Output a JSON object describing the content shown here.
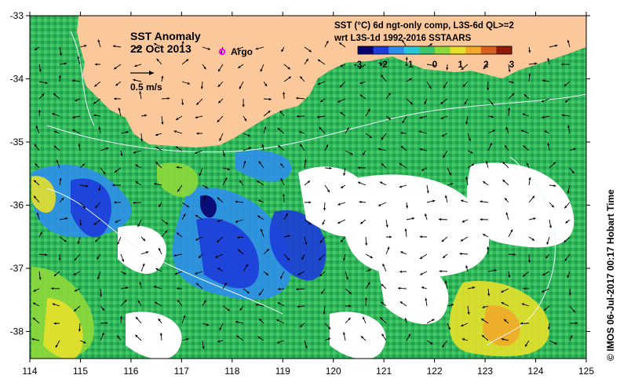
{
  "title": {
    "line1": "SST Anomaly",
    "line2": "22 Oct 2013"
  },
  "argo_label": "Argo",
  "vector_scale_label": "0.5 m/s",
  "colorbar": {
    "title_line1": "SST (°C) 6d ngt-only comp, L3S-6d QL>=2",
    "title_line2": "wrt L3S-1d 1992-2016 SSTAARS",
    "ticks": [
      "-3",
      "-2",
      "-1",
      "0",
      "1",
      "2",
      "3"
    ],
    "colors": [
      "#08006e",
      "#1d3cd8",
      "#2e8fea",
      "#28c8d8",
      "#3ec46a",
      "#8ed83a",
      "#e6e02a",
      "#f0a82a",
      "#d8601c",
      "#8e1c06"
    ]
  },
  "axes": {
    "x_ticks": [
      "114",
      "115",
      "116",
      "117",
      "118",
      "119",
      "120",
      "121",
      "122",
      "123",
      "124",
      "125"
    ],
    "y_ticks": [
      "-33",
      "-34",
      "-35",
      "-36",
      "-37",
      "-38"
    ]
  },
  "credit": "© IMOS 06-Jul-2017 00:17 Hobart Time",
  "land_color": "#fac89a",
  "argo_color": "#ff00ff"
}
